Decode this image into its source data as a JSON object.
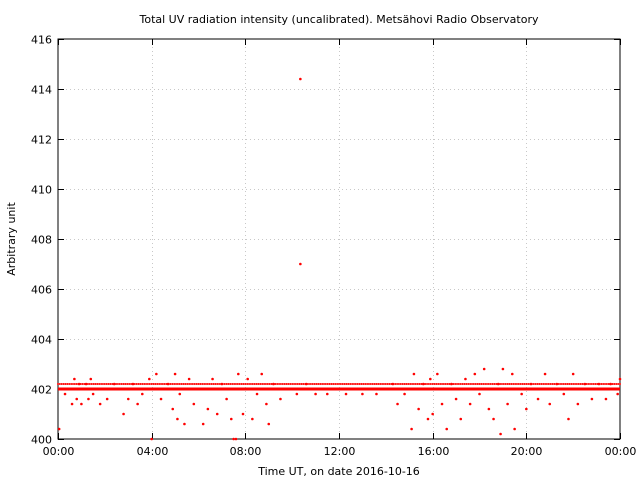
{
  "chart_data": {
    "type": "scatter",
    "title": "Total UV radiation intensity (uncalibrated). Metsähovi Radio Observatory",
    "xlabel": "Time UT, on date 2016-10-16",
    "ylabel": "Arbitrary unit",
    "xlim": [
      0,
      24
    ],
    "ylim": [
      400,
      416
    ],
    "x_ticks": [
      {
        "value": 0,
        "label": "00:00"
      },
      {
        "value": 4,
        "label": "04:00"
      },
      {
        "value": 8,
        "label": "08:00"
      },
      {
        "value": 12,
        "label": "12:00"
      },
      {
        "value": 16,
        "label": "16:00"
      },
      {
        "value": 20,
        "label": "20:00"
      },
      {
        "value": 24,
        "label": "00:00"
      }
    ],
    "y_ticks": [
      {
        "value": 400,
        "label": "400"
      },
      {
        "value": 402,
        "label": "402"
      },
      {
        "value": 404,
        "label": "404"
      },
      {
        "value": 406,
        "label": "406"
      },
      {
        "value": 408,
        "label": "408"
      },
      {
        "value": 410,
        "label": "410"
      },
      {
        "value": 412,
        "label": "412"
      },
      {
        "value": 414,
        "label": "414"
      },
      {
        "value": 416,
        "label": "416"
      }
    ],
    "grid": true,
    "series": [
      {
        "color": "#ff0000",
        "baseline_value": 402.0,
        "points": [
          [
            0.05,
            400.4
          ],
          [
            0.3,
            401.8
          ],
          [
            0.6,
            401.4
          ],
          [
            0.7,
            402.4
          ],
          [
            0.8,
            401.6
          ],
          [
            0.9,
            402.2
          ],
          [
            1.0,
            401.4
          ],
          [
            1.2,
            402.2
          ],
          [
            1.3,
            401.6
          ],
          [
            1.4,
            402.4
          ],
          [
            1.5,
            401.8
          ],
          [
            1.8,
            401.4
          ],
          [
            2.1,
            401.6
          ],
          [
            2.4,
            402.2
          ],
          [
            2.8,
            401.0
          ],
          [
            3.0,
            401.6
          ],
          [
            3.2,
            402.2
          ],
          [
            3.4,
            401.4
          ],
          [
            3.6,
            401.8
          ],
          [
            3.9,
            402.4
          ],
          [
            4.0,
            400.0
          ],
          [
            4.2,
            402.6
          ],
          [
            4.4,
            401.6
          ],
          [
            4.7,
            402.2
          ],
          [
            4.9,
            401.2
          ],
          [
            5.0,
            402.6
          ],
          [
            5.1,
            400.8
          ],
          [
            5.2,
            401.8
          ],
          [
            5.4,
            400.6
          ],
          [
            5.6,
            402.4
          ],
          [
            5.8,
            401.4
          ],
          [
            6.0,
            402.0
          ],
          [
            6.2,
            400.6
          ],
          [
            6.4,
            401.2
          ],
          [
            6.6,
            402.4
          ],
          [
            6.8,
            401.0
          ],
          [
            7.0,
            402.2
          ],
          [
            7.2,
            401.6
          ],
          [
            7.4,
            400.8
          ],
          [
            7.5,
            400.0
          ],
          [
            7.6,
            400.0
          ],
          [
            7.7,
            402.6
          ],
          [
            7.9,
            401.0
          ],
          [
            8.1,
            402.4
          ],
          [
            8.3,
            400.8
          ],
          [
            8.5,
            401.8
          ],
          [
            8.7,
            402.6
          ],
          [
            8.9,
            401.4
          ],
          [
            9.0,
            400.6
          ],
          [
            9.2,
            402.2
          ],
          [
            9.5,
            401.6
          ],
          [
            9.8,
            402.0
          ],
          [
            10.2,
            401.8
          ],
          [
            10.35,
            414.4
          ],
          [
            10.35,
            407.0
          ],
          [
            10.6,
            402.2
          ],
          [
            11.0,
            401.8
          ],
          [
            11.5,
            401.8
          ],
          [
            12.3,
            401.8
          ],
          [
            13.0,
            401.8
          ],
          [
            13.6,
            401.8
          ],
          [
            14.3,
            402.2
          ],
          [
            14.5,
            401.4
          ],
          [
            14.8,
            401.8
          ],
          [
            15.1,
            400.4
          ],
          [
            15.2,
            402.6
          ],
          [
            15.4,
            401.2
          ],
          [
            15.6,
            402.2
          ],
          [
            15.8,
            400.8
          ],
          [
            15.9,
            402.4
          ],
          [
            16.0,
            401.0
          ],
          [
            16.2,
            402.6
          ],
          [
            16.4,
            401.4
          ],
          [
            16.6,
            400.4
          ],
          [
            16.8,
            402.2
          ],
          [
            17.0,
            401.6
          ],
          [
            17.2,
            400.8
          ],
          [
            17.4,
            402.4
          ],
          [
            17.6,
            401.4
          ],
          [
            17.8,
            402.6
          ],
          [
            18.0,
            401.8
          ],
          [
            18.2,
            402.8
          ],
          [
            18.4,
            401.2
          ],
          [
            18.6,
            400.8
          ],
          [
            18.8,
            402.2
          ],
          [
            18.9,
            400.2
          ],
          [
            19.0,
            402.8
          ],
          [
            19.2,
            401.4
          ],
          [
            19.4,
            402.6
          ],
          [
            19.5,
            400.4
          ],
          [
            19.8,
            401.8
          ],
          [
            20.0,
            401.2
          ],
          [
            20.2,
            402.2
          ],
          [
            20.5,
            401.6
          ],
          [
            20.8,
            402.6
          ],
          [
            21.0,
            401.4
          ],
          [
            21.3,
            402.2
          ],
          [
            21.6,
            401.8
          ],
          [
            21.8,
            400.8
          ],
          [
            22.0,
            402.6
          ],
          [
            22.2,
            401.4
          ],
          [
            22.5,
            402.2
          ],
          [
            22.8,
            401.6
          ],
          [
            23.1,
            402.2
          ],
          [
            23.4,
            401.6
          ],
          [
            23.6,
            402.2
          ],
          [
            23.9,
            401.8
          ],
          [
            24.0,
            402.4
          ]
        ]
      }
    ]
  }
}
